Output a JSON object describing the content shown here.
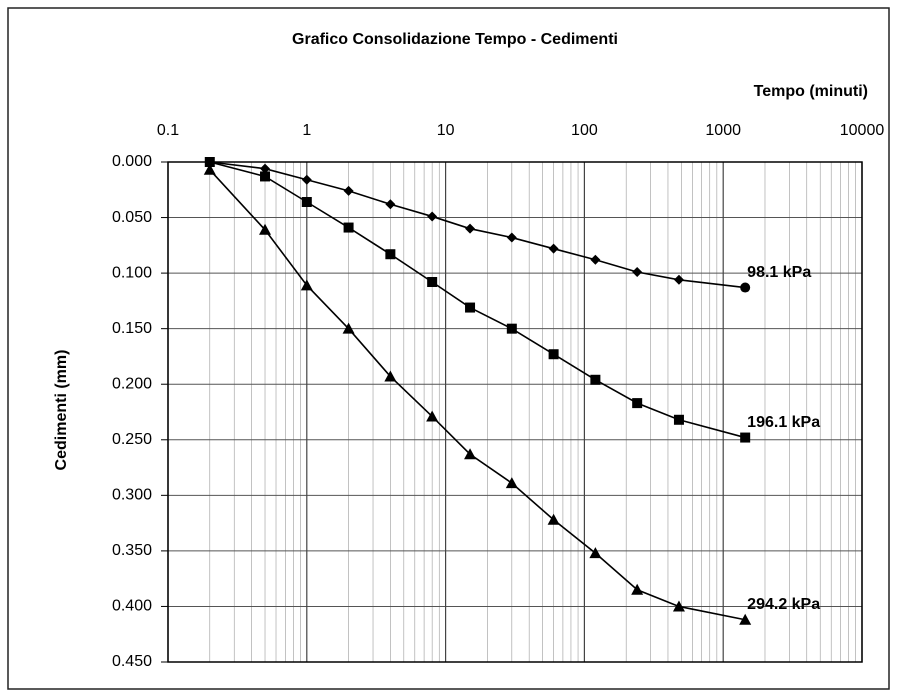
{
  "chart_data": {
    "type": "line",
    "title": "Grafico Consolidazione Tempo - Cedimenti",
    "x_label": "Tempo (minuti)",
    "y_label": "Cedimenti (mm)",
    "x": [
      0.2,
      0.5,
      1,
      2,
      4,
      8,
      15,
      30,
      60,
      120,
      240,
      480,
      1440
    ],
    "x_log": true,
    "xlim": [
      0.1,
      10000
    ],
    "xticks": [
      0.1,
      1,
      10,
      100,
      1000,
      10000
    ],
    "x_axis_position": "top",
    "ylim": [
      0,
      0.45
    ],
    "y_inverted": true,
    "yticks": [
      {
        "value": 0,
        "label": "0.000"
      },
      {
        "value": 0.05,
        "label": "0.050"
      },
      {
        "value": 0.1,
        "label": "0.100"
      },
      {
        "value": 0.15,
        "label": "0.150"
      },
      {
        "value": 0.2,
        "label": "0.200"
      },
      {
        "value": 0.25,
        "label": "0.250"
      },
      {
        "value": 0.3,
        "label": "0.300"
      },
      {
        "value": 0.35,
        "label": "0.350"
      },
      {
        "value": 0.4,
        "label": "0.400"
      },
      {
        "value": 0.45,
        "label": "0.450"
      }
    ],
    "grid": true,
    "series": [
      {
        "name": "98.1 kPa",
        "color": "#000000",
        "marker": "diamond",
        "last_marker": "circle",
        "values": [
          0,
          0.006,
          0.016,
          0.026,
          0.038,
          0.049,
          0.06,
          0.068,
          0.078,
          0.088,
          0.099,
          0.106,
          0.113
        ]
      },
      {
        "name": "196.1 kPa",
        "color": "#000000",
        "marker": "square",
        "values": [
          0,
          0.013,
          0.036,
          0.059,
          0.083,
          0.108,
          0.131,
          0.15,
          0.173,
          0.196,
          0.217,
          0.232,
          0.248
        ]
      },
      {
        "name": "294.2 kPa",
        "color": "#000000",
        "marker": "triangle",
        "values": [
          0.007,
          0.061,
          0.111,
          0.15,
          0.193,
          0.229,
          0.263,
          0.289,
          0.322,
          0.352,
          0.385,
          0.4,
          0.412
        ]
      }
    ]
  }
}
